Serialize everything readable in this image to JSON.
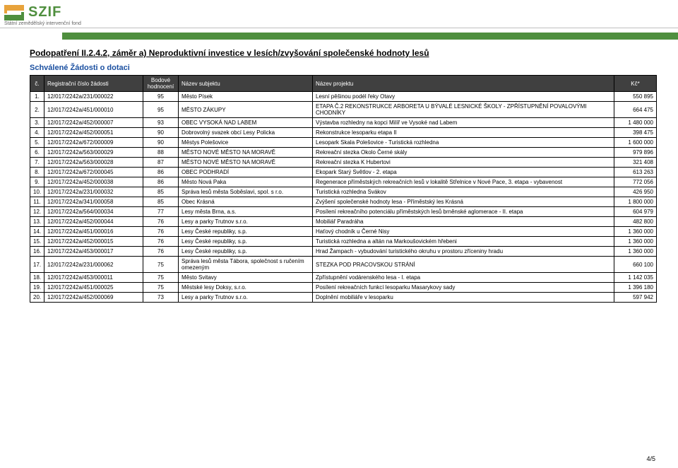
{
  "brand": {
    "name": "SZIF",
    "subtitle": "Státní zemědělský intervenční fond",
    "logo_colors": {
      "top": "#e8a33c",
      "bottom": "#4f8f3e"
    },
    "bar_color": "#4f8f3e"
  },
  "headings": {
    "title": "Podopatření II.2.4.2, záměr a) Neproduktivní investice v lesích/zvyšování společenské hodnoty lesů",
    "subtitle": "Schválené Žádosti o dotaci"
  },
  "table": {
    "headers": {
      "idx": "č.",
      "reg": "Registrační číslo žádosti",
      "score": "Bodové hodnocení",
      "subject": "Název subjektu",
      "project": "Název projektu",
      "amount": "Kč*"
    },
    "rows": [
      {
        "idx": "1.",
        "reg": "12/017/2242a/231/000022",
        "score": "95",
        "subject": "Město Písek",
        "project": "Lesní pěšinou podél řeky Otavy",
        "amount": "550 895"
      },
      {
        "idx": "2.",
        "reg": "12/017/2242a/451/000010",
        "score": "95",
        "subject": "MĚSTO ZÁKUPY",
        "project": "ETAPA Č.2 REKONSTRUKCE ARBORETA U BÝVALÉ LESNICKÉ ŠKOLY - ZPŘÍSTUPNĚNÍ POVALOVÝMI CHODNÍKY",
        "amount": "664 475"
      },
      {
        "idx": "3.",
        "reg": "12/017/2242a/452/000007",
        "score": "93",
        "subject": "OBEC VYSOKÁ NAD LABEM",
        "project": "Výstavba rozhledny na kopci Milíř ve Vysoké nad Labem",
        "amount": "1 480 000"
      },
      {
        "idx": "4.",
        "reg": "12/017/2242a/452/000051",
        "score": "90",
        "subject": "Dobrovolný svazek obcí Lesy Policka",
        "project": "Rekonstrukce lesoparku etapa II",
        "amount": "398 475"
      },
      {
        "idx": "5.",
        "reg": "12/017/2242a/672/000009",
        "score": "90",
        "subject": "Městys Polešovice",
        "project": "Lesopark Skala Polešovice - Turistická rozhledna",
        "amount": "1 600 000"
      },
      {
        "idx": "6.",
        "reg": "12/017/2242a/563/000029",
        "score": "88",
        "subject": "MĚSTO NOVÉ MĚSTO NA MORAVĚ",
        "project": "Rekreační stezka Okolo Černé skály",
        "amount": "979 896"
      },
      {
        "idx": "7.",
        "reg": "12/017/2242a/563/000028",
        "score": "87",
        "subject": "MĚSTO NOVÉ MĚSTO NA MORAVĚ",
        "project": "Rekreační stezka K Hubertovi",
        "amount": "321 408"
      },
      {
        "idx": "8.",
        "reg": "12/017/2242a/672/000045",
        "score": "86",
        "subject": "OBEC PODHRADÍ",
        "project": "Ekopark Starý Světlov - 2. etapa",
        "amount": "613 263"
      },
      {
        "idx": "9.",
        "reg": "12/017/2242a/452/000038",
        "score": "86",
        "subject": "Město Nová Paka",
        "project": "Regenerace příměstských rekreačních lesů v lokalitě Střelnice v Nové Pace, 3. etapa - vybavenost",
        "amount": "772 056"
      },
      {
        "idx": "10.",
        "reg": "12/017/2242a/231/000032",
        "score": "85",
        "subject": "Správa lesů města Soběslavi, spol. s r.o.",
        "project": "Turistická rozhledna Svákov",
        "amount": "426 950"
      },
      {
        "idx": "11.",
        "reg": "12/017/2242a/341/000058",
        "score": "85",
        "subject": "Obec Krásná",
        "project": "Zvýšení společenské hodnoty lesa - Příměstský les Krásná",
        "amount": "1 800 000"
      },
      {
        "idx": "12.",
        "reg": "12/017/2242a/564/000034",
        "score": "77",
        "subject": "Lesy města Brna, a.s.",
        "project": "Posílení rekreačního potenciálu příměstských lesů brněnské aglomerace - II. etapa",
        "amount": "604 979"
      },
      {
        "idx": "13.",
        "reg": "12/017/2242a/452/000044",
        "score": "76",
        "subject": "Lesy a parky Trutnov s.r.o.",
        "project": "Mobiliář Paradráha",
        "amount": "482 800"
      },
      {
        "idx": "14.",
        "reg": "12/017/2242a/451/000016",
        "score": "76",
        "subject": "Lesy České republiky, s.p.",
        "project": "Haťový chodník u Černé Nisy",
        "amount": "1 360 000"
      },
      {
        "idx": "15.",
        "reg": "12/017/2242a/452/000015",
        "score": "76",
        "subject": "Lesy České republiky, s.p.",
        "project": "Turistická rozhledna a altán na Markoušovickém hřebeni",
        "amount": "1 360 000"
      },
      {
        "idx": "16.",
        "reg": "12/017/2242a/453/000017",
        "score": "76",
        "subject": "Lesy České republiky, s.p.",
        "project": "Hrad Žampach - vybudování turistického okruhu v prostoru zříceniny hradu",
        "amount": "1 360 000"
      },
      {
        "idx": "17.",
        "reg": "12/017/2242a/231/000062",
        "score": "75",
        "subject": "Správa lesů města Tábora, společnost s ručením omezeným",
        "project": "STEZKA POD PRACOVSKOU STRÁNÍ",
        "amount": "660 100"
      },
      {
        "idx": "18.",
        "reg": "12/017/2242a/453/000011",
        "score": "75",
        "subject": "Město Svitavy",
        "project": "Zpřístupnění vodárenského lesa - I. etapa",
        "amount": "1 142 035"
      },
      {
        "idx": "19.",
        "reg": "12/017/2242a/451/000025",
        "score": "75",
        "subject": "Městské lesy Doksy, s.r.o.",
        "project": "Posílení rekreačních funkcí lesoparku Masarykovy sady",
        "amount": "1 396 180"
      },
      {
        "idx": "20.",
        "reg": "12/017/2242a/452/000069",
        "score": "73",
        "subject": "Lesy a parky Trutnov s.r.o.",
        "project": "Doplnění mobiliáře v lesoparku",
        "amount": "597 942"
      }
    ]
  },
  "footer": {
    "page": "4/5"
  }
}
